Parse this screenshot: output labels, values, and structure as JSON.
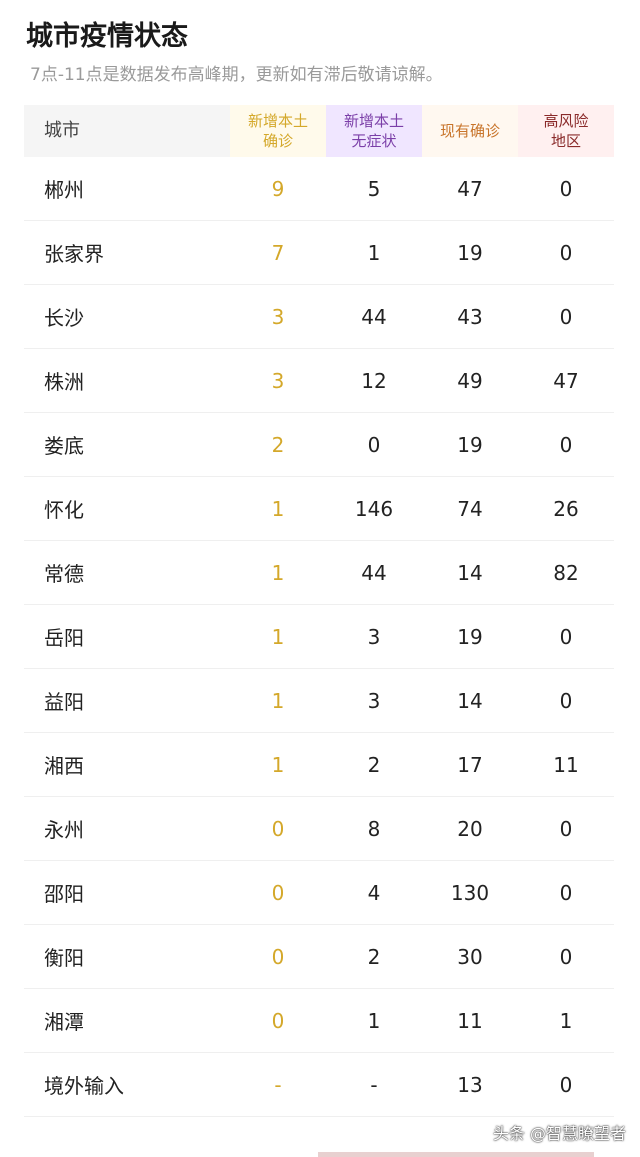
{
  "title": "城市疫情状态",
  "subtitle": "7点-11点是数据发布高峰期，更新如有滞后敬请谅解。",
  "headers": [
    "城市",
    "新增本土\n确诊",
    "新增本土\n无症状",
    "现有确诊",
    "高风险\n地区"
  ],
  "colors": {
    "new_confirmed": "#d4a82a",
    "asymptomatic": "#7b3fa8",
    "current": "#c8742a",
    "high_risk": "#8a2a2a"
  },
  "rows": [
    [
      "郴州",
      "9",
      "5",
      "47",
      "0"
    ],
    [
      "张家界",
      "7",
      "1",
      "19",
      "0"
    ],
    [
      "长沙",
      "3",
      "44",
      "43",
      "0"
    ],
    [
      "株洲",
      "3",
      "12",
      "49",
      "47"
    ],
    [
      "娄底",
      "2",
      "0",
      "19",
      "0"
    ],
    [
      "怀化",
      "1",
      "146",
      "74",
      "26"
    ],
    [
      "常德",
      "1",
      "44",
      "14",
      "82"
    ],
    [
      "岳阳",
      "1",
      "3",
      "19",
      "0"
    ],
    [
      "益阳",
      "1",
      "3",
      "14",
      "0"
    ],
    [
      "湘西",
      "1",
      "2",
      "17",
      "11"
    ],
    [
      "永州",
      "0",
      "8",
      "20",
      "0"
    ],
    [
      "邵阳",
      "0",
      "4",
      "130",
      "0"
    ],
    [
      "衡阳",
      "0",
      "2",
      "30",
      "0"
    ],
    [
      "湘潭",
      "0",
      "1",
      "11",
      "1"
    ],
    [
      "境外输入",
      "-",
      "-",
      "13",
      "0"
    ]
  ],
  "watermark": "头条 @智慧瞭望者"
}
